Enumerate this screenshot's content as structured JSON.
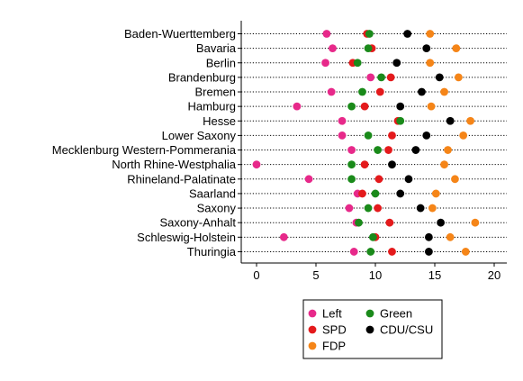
{
  "chart_data": {
    "type": "scatter",
    "orientation": "horizontal-dot",
    "categories": [
      "Baden-Wuerttemberg",
      "Bavaria",
      "Berlin",
      "Brandenburg",
      "Bremen",
      "Hamburg",
      "Hesse",
      "Lower Saxony",
      "Mecklenburg Western-Pommerania",
      "North Rhine-Westphalia",
      "Rhineland-Palatinate",
      "Saarland",
      "Saxony",
      "Saxony-Anhalt",
      "Schleswig-Holstein",
      "Thuringia"
    ],
    "series": [
      {
        "name": "Left",
        "color": "#e7298a",
        "values": [
          5.9,
          6.4,
          5.8,
          9.6,
          6.3,
          3.4,
          7.2,
          7.2,
          8.0,
          0.0,
          4.4,
          8.5,
          7.8,
          8.4,
          2.3,
          8.2
        ]
      },
      {
        "name": "SPD",
        "color": "#e41a1c",
        "values": [
          9.3,
          9.7,
          8.1,
          11.3,
          10.4,
          9.1,
          11.9,
          11.4,
          11.1,
          9.1,
          10.3,
          8.9,
          10.2,
          11.2,
          10.0,
          11.4
        ]
      },
      {
        "name": "Green",
        "color": "#1a8a1a",
        "values": [
          9.5,
          9.4,
          8.5,
          10.5,
          8.9,
          8.0,
          12.1,
          9.4,
          10.2,
          8.0,
          8.0,
          10.0,
          9.4,
          8.6,
          9.8,
          9.6
        ]
      },
      {
        "name": "CDU/CSU",
        "color": "#000000",
        "values": [
          12.7,
          14.3,
          11.8,
          15.4,
          13.9,
          12.1,
          16.3,
          14.3,
          13.4,
          11.4,
          12.8,
          12.1,
          13.8,
          15.5,
          14.5,
          14.5
        ]
      },
      {
        "name": "FDP",
        "color": "#f58518",
        "values": [
          14.6,
          16.8,
          14.6,
          17.0,
          15.8,
          14.7,
          18.0,
          17.4,
          16.1,
          15.8,
          16.7,
          15.1,
          14.8,
          18.4,
          16.3,
          17.6
        ]
      }
    ],
    "xticks": [
      "0",
      "5",
      "10",
      "15",
      "20"
    ],
    "xlim": [
      -1.2,
      21.3
    ],
    "legend_placement": "bottom",
    "legend_order": [
      "Left",
      "Green",
      "SPD",
      "CDU/CSU",
      "FDP"
    ],
    "grid": "dotted row lines"
  }
}
